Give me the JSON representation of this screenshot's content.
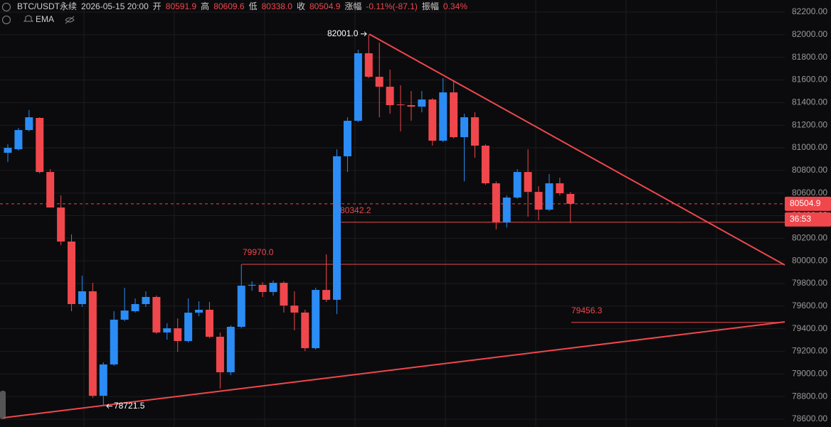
{
  "header": {
    "symbol": "BTC/USDT永续",
    "datetime": "2026-05-15 20:00",
    "fields": [
      {
        "label": "开",
        "value": "80591.9"
      },
      {
        "label": "高",
        "value": "80609.6"
      },
      {
        "label": "低",
        "value": "80338.0"
      },
      {
        "label": "收",
        "value": "80504.9"
      },
      {
        "label": "涨幅",
        "value": "-0.11%(-87.1)"
      },
      {
        "label": "振幅",
        "value": "0.34%"
      }
    ],
    "indicator": "EMA"
  },
  "chart_data": {
    "type": "candlestick",
    "up_color": "#2b8cf5",
    "down_color": "#f0474d",
    "open": [
      80956,
      80987,
      81157,
      81264,
      80786,
      80472,
      80171,
      79618,
      79731,
      78807,
      79084,
      79480,
      79555,
      79618,
      79681,
      79367,
      79404,
      79291,
      79542,
      79568,
      79329,
      79015,
      79417,
      79781,
      79788,
      79725,
      79806,
      79605,
      79543,
      79228,
      79743,
      79656,
      80925,
      81239,
      81836,
      81628,
      81540,
      81383,
      81377,
      81364,
      81427,
      81063,
      81490,
      81094,
      81270,
      81019,
      80686,
      80340,
      80560,
      80786,
      80610,
      80453,
      80686,
      80591.9
    ],
    "high": [
      81031,
      81176,
      81333,
      81270,
      80811,
      80579,
      80234,
      79869,
      79806,
      79103,
      79555,
      79762,
      79668,
      79731,
      79694,
      79448,
      79492,
      79668,
      79643,
      79637,
      79367,
      79429,
      79970,
      79819,
      79812,
      79825,
      79819,
      79731,
      79568,
      79762,
      80058,
      80987,
      81270,
      81867,
      82001,
      81930,
      81691,
      81553,
      81502,
      81502,
      81440,
      81616,
      81584,
      81301,
      81314,
      81031,
      80704,
      80579,
      80811,
      80987,
      80661,
      80767,
      80736,
      80609.6
    ],
    "low": [
      80874,
      80975,
      81145,
      80774,
      80472,
      80139,
      79555,
      79593,
      78789,
      78721.5,
      79071,
      79467,
      79543,
      79593,
      79354,
      79304,
      79197,
      79278,
      79511,
      79316,
      78870,
      78990,
      79404,
      79737,
      79681,
      79693,
      79543,
      79386,
      79203,
      79216,
      79637,
      79530,
      80786,
      81226,
      81616,
      81270,
      81301,
      81145,
      81239,
      81314,
      81019,
      81050,
      81082,
      80704,
      80912,
      80673,
      80278,
      80296,
      80548,
      80391,
      80359,
      80441,
      80579,
      80338.0
    ],
    "close": [
      81000,
      81157,
      81270,
      80786,
      80472,
      80171,
      79618,
      79731,
      78807,
      79084,
      79480,
      79561,
      79618,
      79681,
      79367,
      79404,
      79291,
      79542,
      79568,
      79329,
      79015,
      79417,
      79781,
      79788,
      79725,
      79806,
      79605,
      79543,
      79228,
      79743,
      79656,
      80925,
      81239,
      81836,
      81628,
      81540,
      81377,
      81377,
      81364,
      81427,
      81063,
      81490,
      81094,
      81270,
      81019,
      80686,
      80340,
      80560,
      80786,
      80610,
      80453,
      80686,
      80598,
      80504.9
    ],
    "ylim": [
      78531,
      82307
    ],
    "yticks": [
      {
        "value": 78600,
        "label": "78600.00"
      },
      {
        "value": 78800,
        "label": "78800.00"
      },
      {
        "value": 79000,
        "label": "79000.00"
      },
      {
        "value": 79200,
        "label": "79200.00"
      },
      {
        "value": 79400,
        "label": "79400.00"
      },
      {
        "value": 79600,
        "label": "79600.00"
      },
      {
        "value": 79800,
        "label": "79800.00"
      },
      {
        "value": 80000,
        "label": "80000.00"
      },
      {
        "value": 80200,
        "label": "80200.00"
      },
      {
        "value": 80400,
        "label": "80400.00"
      },
      {
        "value": 80600,
        "label": "80600.00"
      },
      {
        "value": 80800,
        "label": "80800.00"
      },
      {
        "value": 81000,
        "label": "81000.00"
      },
      {
        "value": 81200,
        "label": "81200.00"
      },
      {
        "value": 81400,
        "label": "81400.00"
      },
      {
        "value": 81600,
        "label": "81600.00"
      },
      {
        "value": 81800,
        "label": "81800.00"
      },
      {
        "value": 82000,
        "label": "82000.00"
      },
      {
        "value": 82200,
        "label": "82200.00"
      }
    ],
    "grid": true,
    "levels": [
      {
        "value": 80342.2,
        "label": "80342.2"
      },
      {
        "value": 79970.0,
        "label": "79970.0"
      },
      {
        "value": 79456.3,
        "label": "79456.3"
      }
    ],
    "extremes": [
      {
        "value": 82001.0,
        "label": "82001.0"
      },
      {
        "value": 78721.5,
        "label": "78721.5"
      }
    ],
    "countdown": "36:53"
  }
}
